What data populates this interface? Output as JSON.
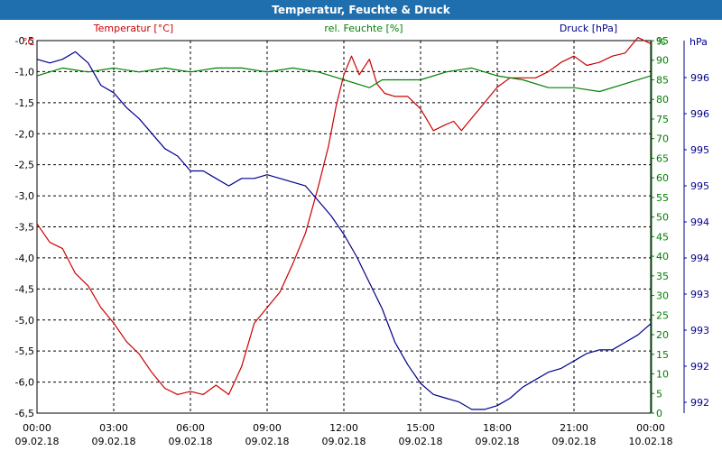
{
  "colors": {
    "title_bg": "#1f6fae",
    "temperature": "#cc0000",
    "humidity": "#008000",
    "pressure": "#00008b",
    "grid": "#000000",
    "text": "#000000"
  },
  "chart_data": {
    "type": "line",
    "title": "Temperatur, Feuchte & Druck",
    "x_ticks": [
      {
        "h": 0,
        "time": "00:00",
        "date": "09.02.18"
      },
      {
        "h": 3,
        "time": "03:00",
        "date": "09.02.18"
      },
      {
        "h": 6,
        "time": "06:00",
        "date": "09.02.18"
      },
      {
        "h": 9,
        "time": "09:00",
        "date": "09.02.18"
      },
      {
        "h": 12,
        "time": "12:00",
        "date": "09.02.18"
      },
      {
        "h": 15,
        "time": "15:00",
        "date": "09.02.18"
      },
      {
        "h": 18,
        "time": "18:00",
        "date": "09.02.18"
      },
      {
        "h": 21,
        "time": "21:00",
        "date": "09.02.18"
      },
      {
        "h": 24,
        "time": "00:00",
        "date": "10.02.18"
      }
    ],
    "xlim": [
      0,
      24
    ],
    "axes": {
      "temperature": {
        "label": "Temperatur [°C]",
        "unit": "°C",
        "min": -6.5,
        "max": -0.5,
        "ticks": [
          "-0,5",
          "-1,0",
          "-1,5",
          "-2,0",
          "-2,5",
          "-3,0",
          "-3,5",
          "-4,0",
          "-4,5",
          "-5,0",
          "-5,5",
          "-6,0",
          "-6,5"
        ]
      },
      "humidity": {
        "label": "rel. Feuchte [%]",
        "unit": "%",
        "min": 0,
        "max": 95,
        "ticks": [
          "95",
          "90",
          "85",
          "80",
          "75",
          "70",
          "65",
          "60",
          "55",
          "50",
          "45",
          "40",
          "35",
          "30",
          "25",
          "20",
          "15",
          "10",
          "5",
          "0"
        ]
      },
      "pressure": {
        "label": "Druck [hPa]",
        "unit": "hPa",
        "min": 991.6,
        "max": 996.6,
        "ticks": [
          "996",
          "996",
          "995",
          "995",
          "994",
          "994",
          "993",
          "993",
          "992",
          "992"
        ]
      }
    },
    "series": [
      {
        "name": "Temperatur",
        "axis": "temperature",
        "color": "#cc0000",
        "x": [
          0,
          0.5,
          1,
          1.5,
          2,
          2.5,
          3,
          3.5,
          4,
          4.5,
          5,
          5.5,
          6,
          6.5,
          7,
          7.5,
          8,
          8.5,
          9,
          9.5,
          10,
          10.5,
          11,
          11.4,
          11.7,
          12,
          12.3,
          12.6,
          13,
          13.3,
          13.6,
          14,
          14.5,
          15,
          15.5,
          16,
          16.3,
          16.6,
          17,
          17.3,
          17.6,
          18,
          18.5,
          19,
          19.5,
          20,
          20.5,
          21,
          21.5,
          22,
          22.5,
          23,
          23.5,
          24
        ],
        "values": [
          -3.45,
          -3.75,
          -3.85,
          -4.25,
          -4.45,
          -4.8,
          -5.05,
          -5.35,
          -5.55,
          -5.85,
          -6.1,
          -6.2,
          -6.15,
          -6.2,
          -6.05,
          -6.2,
          -5.75,
          -5.05,
          -4.8,
          -4.55,
          -4.1,
          -3.6,
          -2.85,
          -2.2,
          -1.55,
          -1.05,
          -0.75,
          -1.05,
          -0.8,
          -1.2,
          -1.35,
          -1.4,
          -1.4,
          -1.6,
          -1.95,
          -1.85,
          -1.8,
          -1.95,
          -1.75,
          -1.6,
          -1.45,
          -1.25,
          -1.1,
          -1.1,
          -1.1,
          -1.0,
          -0.85,
          -0.75,
          -0.9,
          -0.85,
          -0.75,
          -0.7,
          -0.45,
          -0.55
        ]
      },
      {
        "name": "rel. Feuchte",
        "axis": "humidity",
        "color": "#008000",
        "x": [
          0,
          1,
          2,
          3,
          4,
          5,
          6,
          7,
          8,
          9,
          10,
          11,
          11.5,
          12,
          12.5,
          13,
          13.5,
          14,
          15,
          16,
          17,
          18,
          19,
          20,
          21,
          22,
          23,
          24
        ],
        "values": [
          86,
          88,
          87,
          88,
          87,
          88,
          87,
          88,
          88,
          87,
          88,
          87,
          86,
          85,
          84,
          83,
          85,
          85,
          85,
          87,
          88,
          86,
          85,
          83,
          83,
          82,
          84,
          86
        ]
      },
      {
        "name": "Druck",
        "axis": "pressure",
        "color": "#00008b",
        "x": [
          0,
          0.5,
          1,
          1.5,
          2,
          2.5,
          3,
          3.5,
          4,
          4.5,
          5,
          5.5,
          6,
          6.5,
          7,
          7.5,
          8,
          8.5,
          9,
          9.5,
          10,
          10.5,
          11,
          11.5,
          12,
          12.5,
          13,
          13.5,
          14,
          14.5,
          15,
          15.5,
          16,
          16.5,
          17,
          17.5,
          18,
          18.5,
          19,
          19.5,
          20,
          20.5,
          21,
          21.5,
          22,
          22.5,
          23,
          23.5,
          24
        ],
        "values": [
          996.35,
          996.3,
          996.35,
          996.45,
          996.3,
          996.0,
          995.9,
          995.7,
          995.55,
          995.35,
          995.15,
          995.05,
          994.85,
          994.85,
          994.75,
          994.65,
          994.75,
          994.75,
          994.8,
          994.75,
          994.7,
          994.65,
          994.45,
          994.25,
          994.0,
          993.7,
          993.35,
          993.0,
          992.55,
          992.25,
          992.0,
          991.85,
          991.8,
          991.75,
          991.65,
          991.65,
          991.7,
          991.8,
          991.95,
          992.05,
          992.15,
          992.2,
          992.3,
          992.4,
          992.45,
          992.45,
          992.55,
          992.65,
          992.8
        ]
      }
    ]
  }
}
